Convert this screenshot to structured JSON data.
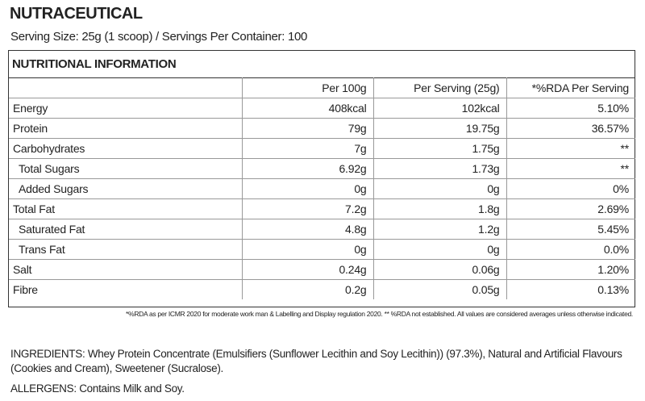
{
  "header": {
    "title": "NUTRACEUTICAL",
    "serving": "Serving Size: 25g (1 scoop)  / Servings Per Container: 100"
  },
  "table": {
    "title": "NUTRITIONAL INFORMATION",
    "columns": [
      "",
      "Per 100g",
      "Per Serving (25g)",
      "*%RDA Per Serving"
    ],
    "rows": [
      [
        "Energy",
        "408kcal",
        "102kcal",
        "5.10%"
      ],
      [
        "Protein",
        "79g",
        "19.75g",
        "36.57%"
      ],
      [
        "Carbohydrates",
        "7g",
        "1.75g",
        "**"
      ],
      [
        "Total Sugars",
        "6.92g",
        "1.73g",
        "**"
      ],
      [
        "Added Sugars",
        "0g",
        "0g",
        "0%"
      ],
      [
        "Total Fat",
        "7.2g",
        "1.8g",
        "2.69%"
      ],
      [
        "Saturated Fat",
        "4.8g",
        "1.2g",
        "5.45%"
      ],
      [
        "Trans Fat",
        "0g",
        "0g",
        "0.0%"
      ],
      [
        "Salt",
        "0.24g",
        "0.06g",
        "1.20%"
      ],
      [
        "Fibre",
        "0.2g",
        "0.05g",
        "0.13%"
      ]
    ],
    "footnote": "*%RDA as per ICMR 2020 for moderate work man & Labelling and Display regulation 2020. ** %RDA not established. All values are considered averages unless otherwise indicated."
  },
  "ingredients": "INGREDIENTS: Whey Protein Concentrate (Emulsifiers (Sunflower Lecithin and Soy Lecithin)) (97.3%), Natural and Artificial Flavours (Cookies and Cream), Sweetener (Sucralose).",
  "allergens": "ALLERGENS: Contains Milk and Soy."
}
